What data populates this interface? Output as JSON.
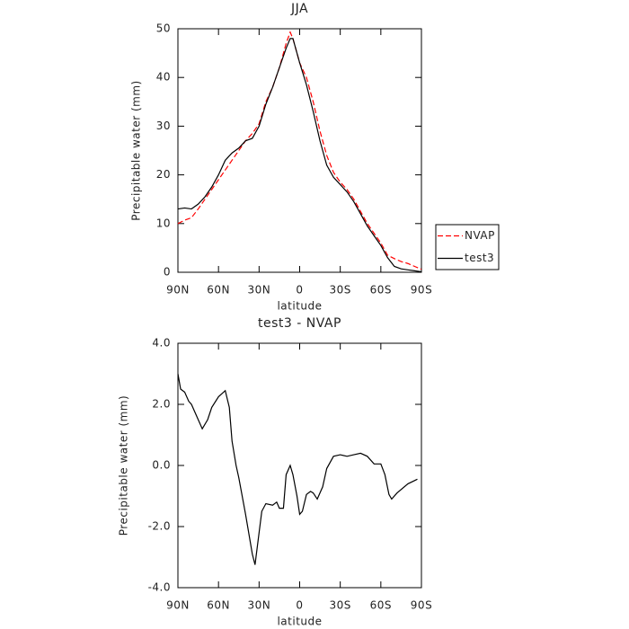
{
  "chart_data": [
    {
      "type": "line",
      "title": "JJA",
      "x_label": "latitude",
      "y_label": "Precipitable water (mm)",
      "x": [
        90,
        85,
        80,
        75,
        70,
        65,
        60,
        55,
        50,
        45,
        40,
        35,
        30,
        25,
        20,
        15,
        10,
        7,
        5,
        0,
        -5,
        -10,
        -15,
        -20,
        -25,
        -30,
        -35,
        -40,
        -45,
        -50,
        -55,
        -60,
        -65,
        -70,
        -75,
        -80,
        -85,
        -90
      ],
      "series": [
        {
          "name": "NVAP",
          "color": "#ff0000",
          "dash": true,
          "values": [
            10,
            10.7,
            11.2,
            13,
            15,
            17,
            19,
            21,
            23,
            25,
            27,
            28.5,
            30.5,
            35,
            38,
            42,
            47,
            49.3,
            48,
            43,
            40,
            35,
            29,
            24,
            20.5,
            18.5,
            17,
            15,
            12.5,
            10,
            8,
            6,
            3.5,
            2.8,
            2.2,
            1.8,
            1.2,
            0.6
          ]
        },
        {
          "name": "test3",
          "color": "#000000",
          "dash": false,
          "values": [
            13,
            13.2,
            13,
            14,
            15.5,
            17.5,
            20,
            23,
            24.5,
            25.5,
            27,
            27.5,
            30,
            34.5,
            38,
            42,
            46,
            48,
            48,
            43,
            38.5,
            33,
            27,
            22,
            19.5,
            18,
            16.5,
            14.5,
            12,
            9.5,
            7.5,
            5.5,
            3,
            1.2,
            0.7,
            0.5,
            0.3,
            0.1
          ]
        }
      ],
      "xlim": [
        90,
        -90
      ],
      "xticks": [
        {
          "value": 90,
          "label": "90N"
        },
        {
          "value": 60,
          "label": "60N"
        },
        {
          "value": 30,
          "label": "30N"
        },
        {
          "value": 0,
          "label": "0"
        },
        {
          "value": -30,
          "label": "30S"
        },
        {
          "value": -60,
          "label": "60S"
        },
        {
          "value": -90,
          "label": "90S"
        }
      ],
      "ylim": [
        0,
        50
      ],
      "yticks": [
        0,
        10,
        20,
        30,
        40,
        50
      ],
      "legend": "outside-right"
    },
    {
      "type": "line",
      "title": "test3 - NVAP",
      "x_label": "latitude",
      "y_label": "Precipitable water (mm)",
      "x": [
        90,
        88,
        85,
        82,
        80,
        75,
        72,
        68,
        65,
        60,
        55,
        52,
        50,
        47,
        45,
        40,
        35,
        33,
        30,
        28,
        25,
        20,
        17,
        15,
        12,
        10,
        7,
        5,
        2,
        0,
        -2,
        -5,
        -8,
        -10,
        -13,
        -17,
        -20,
        -25,
        -30,
        -35,
        -40,
        -45,
        -50,
        -55,
        -60,
        -63,
        -66,
        -68,
        -72,
        -80,
        -87
      ],
      "series": [
        {
          "color": "#000000",
          "dash": false,
          "values": [
            3.0,
            2.5,
            2.4,
            2.1,
            2.0,
            1.5,
            1.2,
            1.5,
            1.9,
            2.25,
            2.45,
            1.9,
            0.8,
            0,
            -0.4,
            -1.6,
            -2.9,
            -3.25,
            -2.2,
            -1.5,
            -1.25,
            -1.3,
            -1.2,
            -1.4,
            -1.4,
            -0.3,
            0.0,
            -0.3,
            -1.0,
            -1.6,
            -1.5,
            -0.95,
            -0.85,
            -0.9,
            -1.1,
            -0.7,
            -0.1,
            0.3,
            0.35,
            0.3,
            0.35,
            0.4,
            0.3,
            0.05,
            0.05,
            -0.3,
            -0.95,
            -1.1,
            -0.9,
            -0.6,
            -0.45
          ]
        }
      ],
      "xlim": [
        90,
        -90
      ],
      "xticks": [
        {
          "value": 90,
          "label": "90N"
        },
        {
          "value": 60,
          "label": "60N"
        },
        {
          "value": 30,
          "label": "30N"
        },
        {
          "value": 0,
          "label": "0"
        },
        {
          "value": -30,
          "label": "30S"
        },
        {
          "value": -60,
          "label": "60S"
        },
        {
          "value": -90,
          "label": "90S"
        }
      ],
      "ylim": [
        -4,
        4
      ],
      "yticks": [
        {
          "value": -4,
          "label": "-4.0"
        },
        {
          "value": -2,
          "label": "-2.0"
        },
        {
          "value": 0,
          "label": "0.0"
        },
        {
          "value": 2,
          "label": "2.0"
        },
        {
          "value": 4,
          "label": "4.0"
        }
      ]
    }
  ]
}
